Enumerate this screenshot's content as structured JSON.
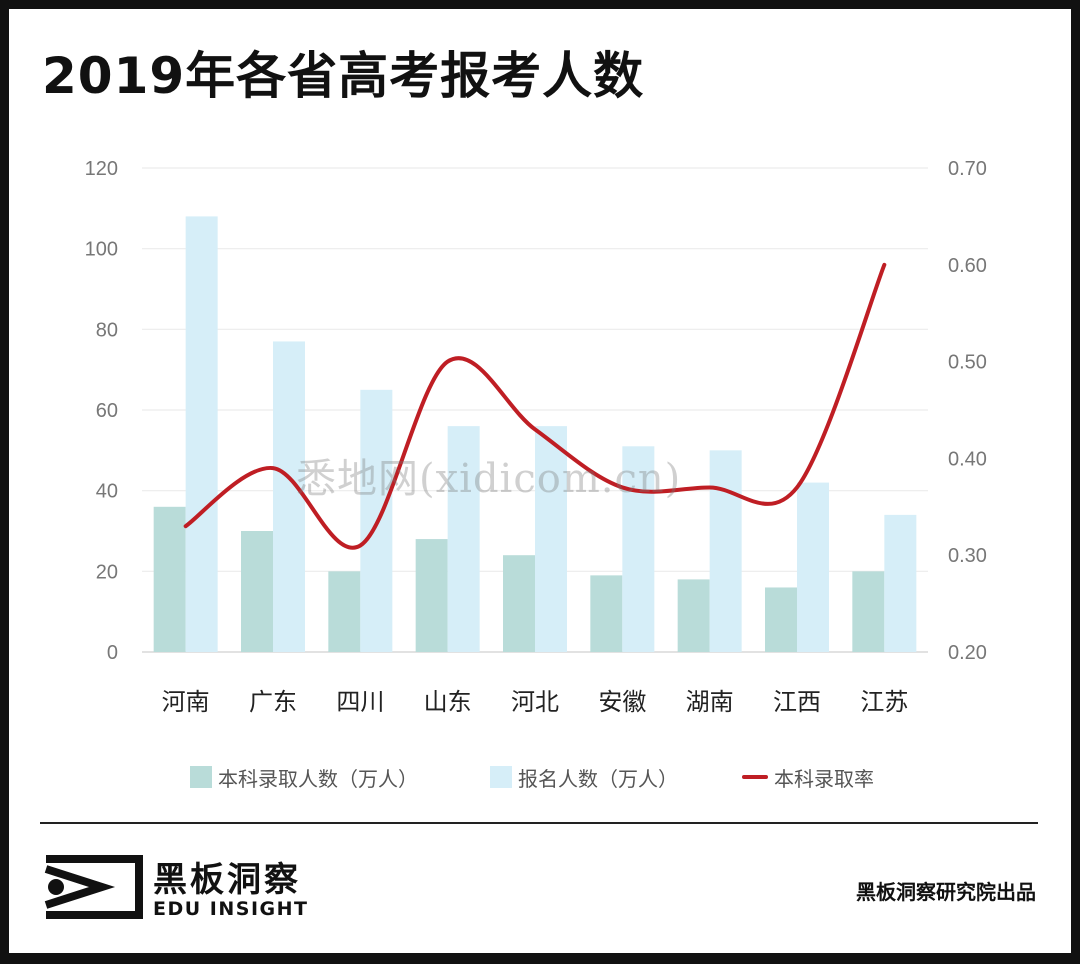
{
  "title": "2019年各省高考报考人数",
  "watermark": "悉地网(xidicom.cn)",
  "chart_data": {
    "type": "bar",
    "categories": [
      "河南",
      "广东",
      "四川",
      "山东",
      "河北",
      "安徽",
      "湖南",
      "江西",
      "江苏"
    ],
    "series": [
      {
        "name": "本科录取人数（万人）",
        "type": "bar",
        "axis": "left",
        "color": "#b9dcd9",
        "values": [
          36,
          30,
          20,
          28,
          24,
          19,
          18,
          16,
          20
        ]
      },
      {
        "name": "报名人数（万人）",
        "type": "bar",
        "axis": "left",
        "color": "#d6eef8",
        "values": [
          108,
          77,
          65,
          56,
          56,
          51,
          50,
          42,
          34
        ]
      },
      {
        "name": "本科录取率",
        "type": "line",
        "axis": "right",
        "color": "#bf1e24",
        "values": [
          0.33,
          0.39,
          0.31,
          0.5,
          0.43,
          0.37,
          0.37,
          0.37,
          0.6
        ]
      }
    ],
    "y_left": {
      "min": 0,
      "max": 120,
      "ticks": [
        "0",
        "20",
        "40",
        "60",
        "80",
        "100",
        "120"
      ]
    },
    "y_right": {
      "min": 0.2,
      "max": 0.7,
      "ticks": [
        "0.20",
        "0.30",
        "0.40",
        "0.50",
        "0.60",
        "0.70"
      ]
    },
    "grid": true,
    "legend_position": "bottom"
  },
  "footer": {
    "brand_cn": "黑板洞察",
    "brand_en": "EDU INSIGHT",
    "credit": "黑板洞察研究院出品"
  }
}
